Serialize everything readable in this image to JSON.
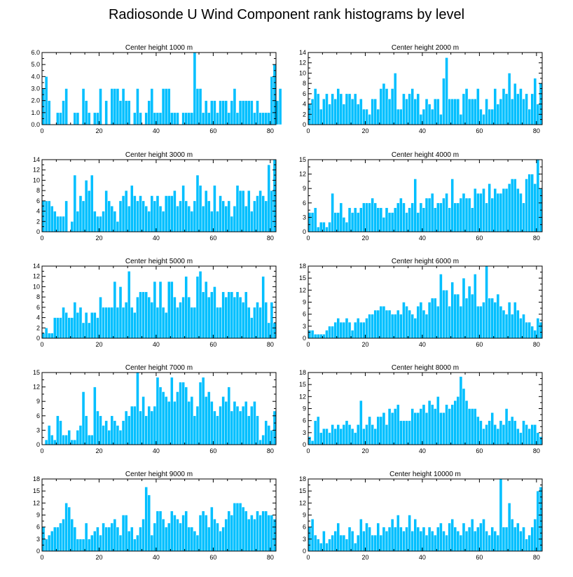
{
  "title": "Radiosonde U Wind Component rank histograms by level",
  "colors": {
    "bar": "#00bfff",
    "bar_edge": "#ffffff",
    "axis": "#000000",
    "background": "#ffffff"
  },
  "chart_data": [
    {
      "type": "bar",
      "title": "Center height 1000 m",
      "xlabel": "",
      "ylabel": "",
      "xlim": [
        0,
        82
      ],
      "ylim": [
        0,
        6
      ],
      "yticks": [
        0,
        1,
        2,
        3,
        4,
        5,
        6
      ],
      "ytick_labels": [
        "0.0",
        "1.0",
        "2.0",
        "3.0",
        "4.0",
        "5.0",
        "6.0"
      ],
      "xticks": [
        0,
        20,
        40,
        60,
        80
      ],
      "values": [
        3,
        4,
        2,
        0,
        0,
        1,
        1,
        2,
        3,
        0,
        0,
        1,
        1,
        0,
        3,
        2,
        1,
        0,
        1,
        1,
        3,
        0,
        2,
        0,
        3,
        3,
        3,
        2,
        3,
        2,
        2,
        0,
        1,
        3,
        1,
        0,
        1,
        2,
        3,
        1,
        1,
        1,
        3,
        3,
        3,
        1,
        1,
        1,
        0,
        1,
        1,
        1,
        1,
        6,
        3,
        3,
        1,
        2,
        1,
        2,
        2,
        1,
        2,
        2,
        2,
        1,
        2,
        3,
        1,
        2,
        2,
        2,
        2,
        2,
        1,
        2,
        1,
        1,
        1,
        1,
        4,
        5,
        2,
        3
      ]
    },
    {
      "type": "bar",
      "title": "Center height 2000 m",
      "xlabel": "",
      "ylabel": "",
      "xlim": [
        0,
        82
      ],
      "ylim": [
        0,
        14
      ],
      "yticks": [
        0,
        2,
        4,
        6,
        8,
        10,
        12,
        14
      ],
      "ytick_labels": [
        "0",
        "2",
        "4",
        "6",
        "8",
        "10",
        "12",
        "14"
      ],
      "xticks": [
        0,
        20,
        40,
        60,
        80
      ],
      "values": [
        4,
        5,
        7,
        6,
        3,
        5,
        6,
        4,
        6,
        5,
        7,
        6,
        4,
        6,
        6,
        5,
        6,
        4,
        5,
        3,
        3,
        2,
        5,
        5,
        3,
        7,
        8,
        7,
        5,
        7,
        10,
        3,
        3,
        6,
        5,
        6,
        7,
        5,
        6,
        2,
        3,
        5,
        4,
        3,
        5,
        5,
        2,
        9,
        13,
        5,
        5,
        5,
        5,
        2,
        6,
        7,
        5,
        5,
        5,
        7,
        3,
        2,
        5,
        3,
        3,
        7,
        4,
        5,
        7,
        6,
        10,
        5,
        8,
        6,
        7,
        5,
        6,
        3,
        6,
        9,
        4,
        8
      ]
    },
    {
      "type": "bar",
      "title": "Center height 3000 m",
      "xlabel": "",
      "ylabel": "",
      "xlim": [
        0,
        82
      ],
      "ylim": [
        0,
        14
      ],
      "yticks": [
        0,
        2,
        4,
        6,
        8,
        10,
        12,
        14
      ],
      "ytick_labels": [
        "0",
        "2",
        "4",
        "6",
        "8",
        "10",
        "12",
        "14"
      ],
      "xticks": [
        0,
        20,
        40,
        60,
        80
      ],
      "values": [
        6,
        6,
        6,
        5,
        4,
        3,
        3,
        3,
        6,
        0,
        2,
        11,
        4,
        7,
        6,
        10,
        8,
        11,
        4,
        3,
        3,
        4,
        8,
        6,
        5,
        4,
        2,
        6,
        7,
        8,
        5,
        9,
        7,
        6,
        7,
        6,
        5,
        4,
        7,
        6,
        7,
        5,
        4,
        7,
        7,
        7,
        8,
        5,
        6,
        9,
        6,
        5,
        4,
        6,
        11,
        9,
        5,
        8,
        6,
        4,
        9,
        4,
        7,
        6,
        5,
        6,
        3,
        5,
        9,
        8,
        8,
        5,
        8,
        4,
        6,
        7,
        8,
        7,
        6,
        13,
        8,
        14
      ]
    },
    {
      "type": "bar",
      "title": "Center height 4000 m",
      "xlabel": "",
      "ylabel": "",
      "xlim": [
        0,
        82
      ],
      "ylim": [
        0,
        15
      ],
      "yticks": [
        0,
        3,
        6,
        9,
        12,
        15
      ],
      "ytick_labels": [
        "0",
        "3",
        "6",
        "9",
        "12",
        "15"
      ],
      "xticks": [
        0,
        20,
        40,
        60,
        80
      ],
      "values": [
        4,
        4,
        5,
        1,
        2,
        2,
        1,
        2,
        8,
        4,
        4,
        6,
        3,
        2,
        5,
        4,
        5,
        4,
        5,
        6,
        6,
        6,
        7,
        6,
        5,
        5,
        3,
        5,
        4,
        4,
        5,
        6,
        7,
        6,
        4,
        5,
        6,
        11,
        4,
        6,
        5,
        7,
        7,
        8,
        5,
        6,
        6,
        7,
        8,
        5,
        11,
        6,
        6,
        7,
        8,
        7,
        7,
        5,
        9,
        8,
        8,
        9,
        6,
        10,
        7,
        9,
        8,
        8,
        9,
        9,
        10,
        11,
        11,
        9,
        8,
        6,
        11,
        12,
        12,
        10,
        15,
        9
      ]
    },
    {
      "type": "bar",
      "title": "Center height 5000 m",
      "xlabel": "",
      "ylabel": "",
      "xlim": [
        0,
        82
      ],
      "ylim": [
        0,
        14
      ],
      "yticks": [
        0,
        2,
        4,
        6,
        8,
        10,
        12,
        14
      ],
      "ytick_labels": [
        "0",
        "2",
        "4",
        "6",
        "8",
        "10",
        "12",
        "14"
      ],
      "xticks": [
        0,
        20,
        40,
        60,
        80
      ],
      "values": [
        1,
        2,
        1,
        1,
        4,
        4,
        4,
        6,
        5,
        4,
        4,
        7,
        5,
        6,
        3,
        5,
        3,
        5,
        5,
        4,
        8,
        6,
        6,
        6,
        6,
        11,
        6,
        10,
        6,
        7,
        13,
        6,
        5,
        8,
        9,
        9,
        9,
        8,
        7,
        11,
        6,
        11,
        6,
        5,
        11,
        11,
        8,
        6,
        7,
        8,
        12,
        8,
        6,
        6,
        12,
        13,
        9,
        11,
        8,
        9,
        10,
        6,
        6,
        9,
        8,
        9,
        9,
        8,
        9,
        8,
        7,
        9,
        6,
        4,
        6,
        7,
        6,
        12,
        7,
        3,
        7,
        3
      ]
    },
    {
      "type": "bar",
      "title": "Center height 6000 m",
      "xlabel": "",
      "ylabel": "",
      "xlim": [
        0,
        82
      ],
      "ylim": [
        0,
        18
      ],
      "yticks": [
        0,
        3,
        6,
        9,
        12,
        15,
        18
      ],
      "ytick_labels": [
        "0",
        "3",
        "6",
        "9",
        "12",
        "15",
        "18"
      ],
      "xticks": [
        0,
        20,
        40,
        60,
        80
      ],
      "values": [
        2,
        2,
        1,
        1,
        1,
        1,
        2,
        3,
        3,
        4,
        5,
        4,
        4,
        5,
        4,
        2,
        4,
        5,
        4,
        4,
        5,
        6,
        6,
        7,
        7,
        8,
        8,
        7,
        7,
        6,
        6,
        7,
        6,
        9,
        8,
        7,
        6,
        5,
        8,
        9,
        7,
        6,
        9,
        10,
        10,
        8,
        16,
        12,
        12,
        8,
        14,
        11,
        11,
        8,
        15,
        10,
        13,
        11,
        16,
        8,
        8,
        9,
        18,
        10,
        10,
        9,
        11,
        8,
        7,
        6,
        9,
        6,
        9,
        7,
        5,
        6,
        4,
        4,
        3,
        2,
        5,
        4
      ]
    },
    {
      "type": "bar",
      "title": "Center height 7000 m",
      "xlabel": "",
      "ylabel": "",
      "xlim": [
        0,
        82
      ],
      "ylim": [
        0,
        15
      ],
      "yticks": [
        0,
        3,
        6,
        9,
        12,
        15
      ],
      "ytick_labels": [
        "0",
        "3",
        "6",
        "9",
        "12",
        "15"
      ],
      "xticks": [
        0,
        20,
        40,
        60,
        80
      ],
      "values": [
        0,
        1,
        4,
        2,
        1,
        6,
        5,
        2,
        2,
        3,
        1,
        1,
        3,
        4,
        11,
        6,
        2,
        2,
        12,
        7,
        6,
        4,
        5,
        3,
        6,
        5,
        4,
        3,
        5,
        7,
        6,
        8,
        8,
        15,
        7,
        10,
        6,
        8,
        7,
        8,
        14,
        12,
        11,
        10,
        9,
        14,
        9,
        11,
        13,
        13,
        12,
        9,
        10,
        6,
        8,
        13,
        14,
        10,
        11,
        9,
        7,
        6,
        8,
        10,
        9,
        12,
        7,
        9,
        8,
        7,
        8,
        9,
        6,
        8,
        9,
        6,
        1,
        2,
        5,
        4,
        3,
        7
      ]
    },
    {
      "type": "bar",
      "title": "Center height 8000 m",
      "xlabel": "",
      "ylabel": "",
      "xlim": [
        0,
        82
      ],
      "ylim": [
        0,
        18
      ],
      "yticks": [
        0,
        3,
        6,
        9,
        12,
        15,
        18
      ],
      "ytick_labels": [
        "0",
        "3",
        "6",
        "9",
        "12",
        "15",
        "18"
      ],
      "xticks": [
        0,
        20,
        40,
        60,
        80
      ],
      "values": [
        2,
        1,
        6,
        7,
        3,
        4,
        4,
        3,
        5,
        4,
        5,
        4,
        5,
        6,
        5,
        4,
        3,
        5,
        11,
        4,
        5,
        7,
        5,
        4,
        7,
        7,
        8,
        5,
        9,
        8,
        9,
        10,
        6,
        6,
        6,
        6,
        9,
        8,
        8,
        9,
        10,
        8,
        11,
        10,
        9,
        12,
        8,
        8,
        10,
        9,
        10,
        11,
        12,
        17,
        14,
        11,
        9,
        9,
        9,
        7,
        6,
        4,
        5,
        6,
        8,
        5,
        4,
        6,
        5,
        9,
        6,
        7,
        6,
        4,
        3,
        6,
        5,
        4,
        5,
        5,
        3,
        2
      ]
    },
    {
      "type": "bar",
      "title": "Center height 9000 m",
      "xlabel": "",
      "ylabel": "",
      "xlim": [
        0,
        82
      ],
      "ylim": [
        0,
        18
      ],
      "yticks": [
        0,
        3,
        6,
        9,
        12,
        15,
        18
      ],
      "ytick_labels": [
        "0",
        "3",
        "6",
        "9",
        "12",
        "15",
        "18"
      ],
      "xticks": [
        0,
        20,
        40,
        60,
        80
      ],
      "values": [
        6,
        3,
        4,
        5,
        6,
        6,
        7,
        8,
        12,
        11,
        8,
        6,
        3,
        3,
        3,
        7,
        3,
        4,
        5,
        6,
        4,
        7,
        6,
        6,
        7,
        8,
        6,
        4,
        9,
        9,
        5,
        6,
        3,
        4,
        6,
        8,
        16,
        14,
        4,
        7,
        10,
        10,
        8,
        6,
        7,
        10,
        9,
        8,
        7,
        9,
        10,
        6,
        6,
        5,
        4,
        9,
        10,
        9,
        6,
        11,
        8,
        7,
        5,
        6,
        8,
        10,
        9,
        12,
        12,
        12,
        11,
        10,
        8,
        9,
        8,
        10,
        9,
        10,
        10,
        9,
        9,
        8
      ]
    },
    {
      "type": "bar",
      "title": "Center height 10000 m",
      "xlabel": "",
      "ylabel": "",
      "xlim": [
        0,
        82
      ],
      "ylim": [
        0,
        18
      ],
      "yticks": [
        0,
        3,
        6,
        9,
        12,
        15,
        18
      ],
      "ytick_labels": [
        "0",
        "3",
        "6",
        "9",
        "12",
        "15",
        "18"
      ],
      "xticks": [
        0,
        20,
        40,
        60,
        80
      ],
      "values": [
        6,
        8,
        4,
        3,
        2,
        5,
        2,
        3,
        4,
        5,
        7,
        4,
        4,
        3,
        6,
        5,
        2,
        4,
        8,
        5,
        7,
        6,
        4,
        4,
        7,
        4,
        6,
        5,
        6,
        8,
        6,
        9,
        6,
        5,
        6,
        9,
        5,
        8,
        6,
        5,
        6,
        4,
        6,
        5,
        4,
        6,
        7,
        5,
        4,
        7,
        8,
        6,
        5,
        4,
        7,
        5,
        6,
        8,
        5,
        6,
        7,
        8,
        5,
        4,
        6,
        5,
        4,
        18,
        6,
        6,
        12,
        8,
        6,
        7,
        5,
        6,
        3,
        4,
        6,
        8,
        15,
        16
      ]
    }
  ]
}
